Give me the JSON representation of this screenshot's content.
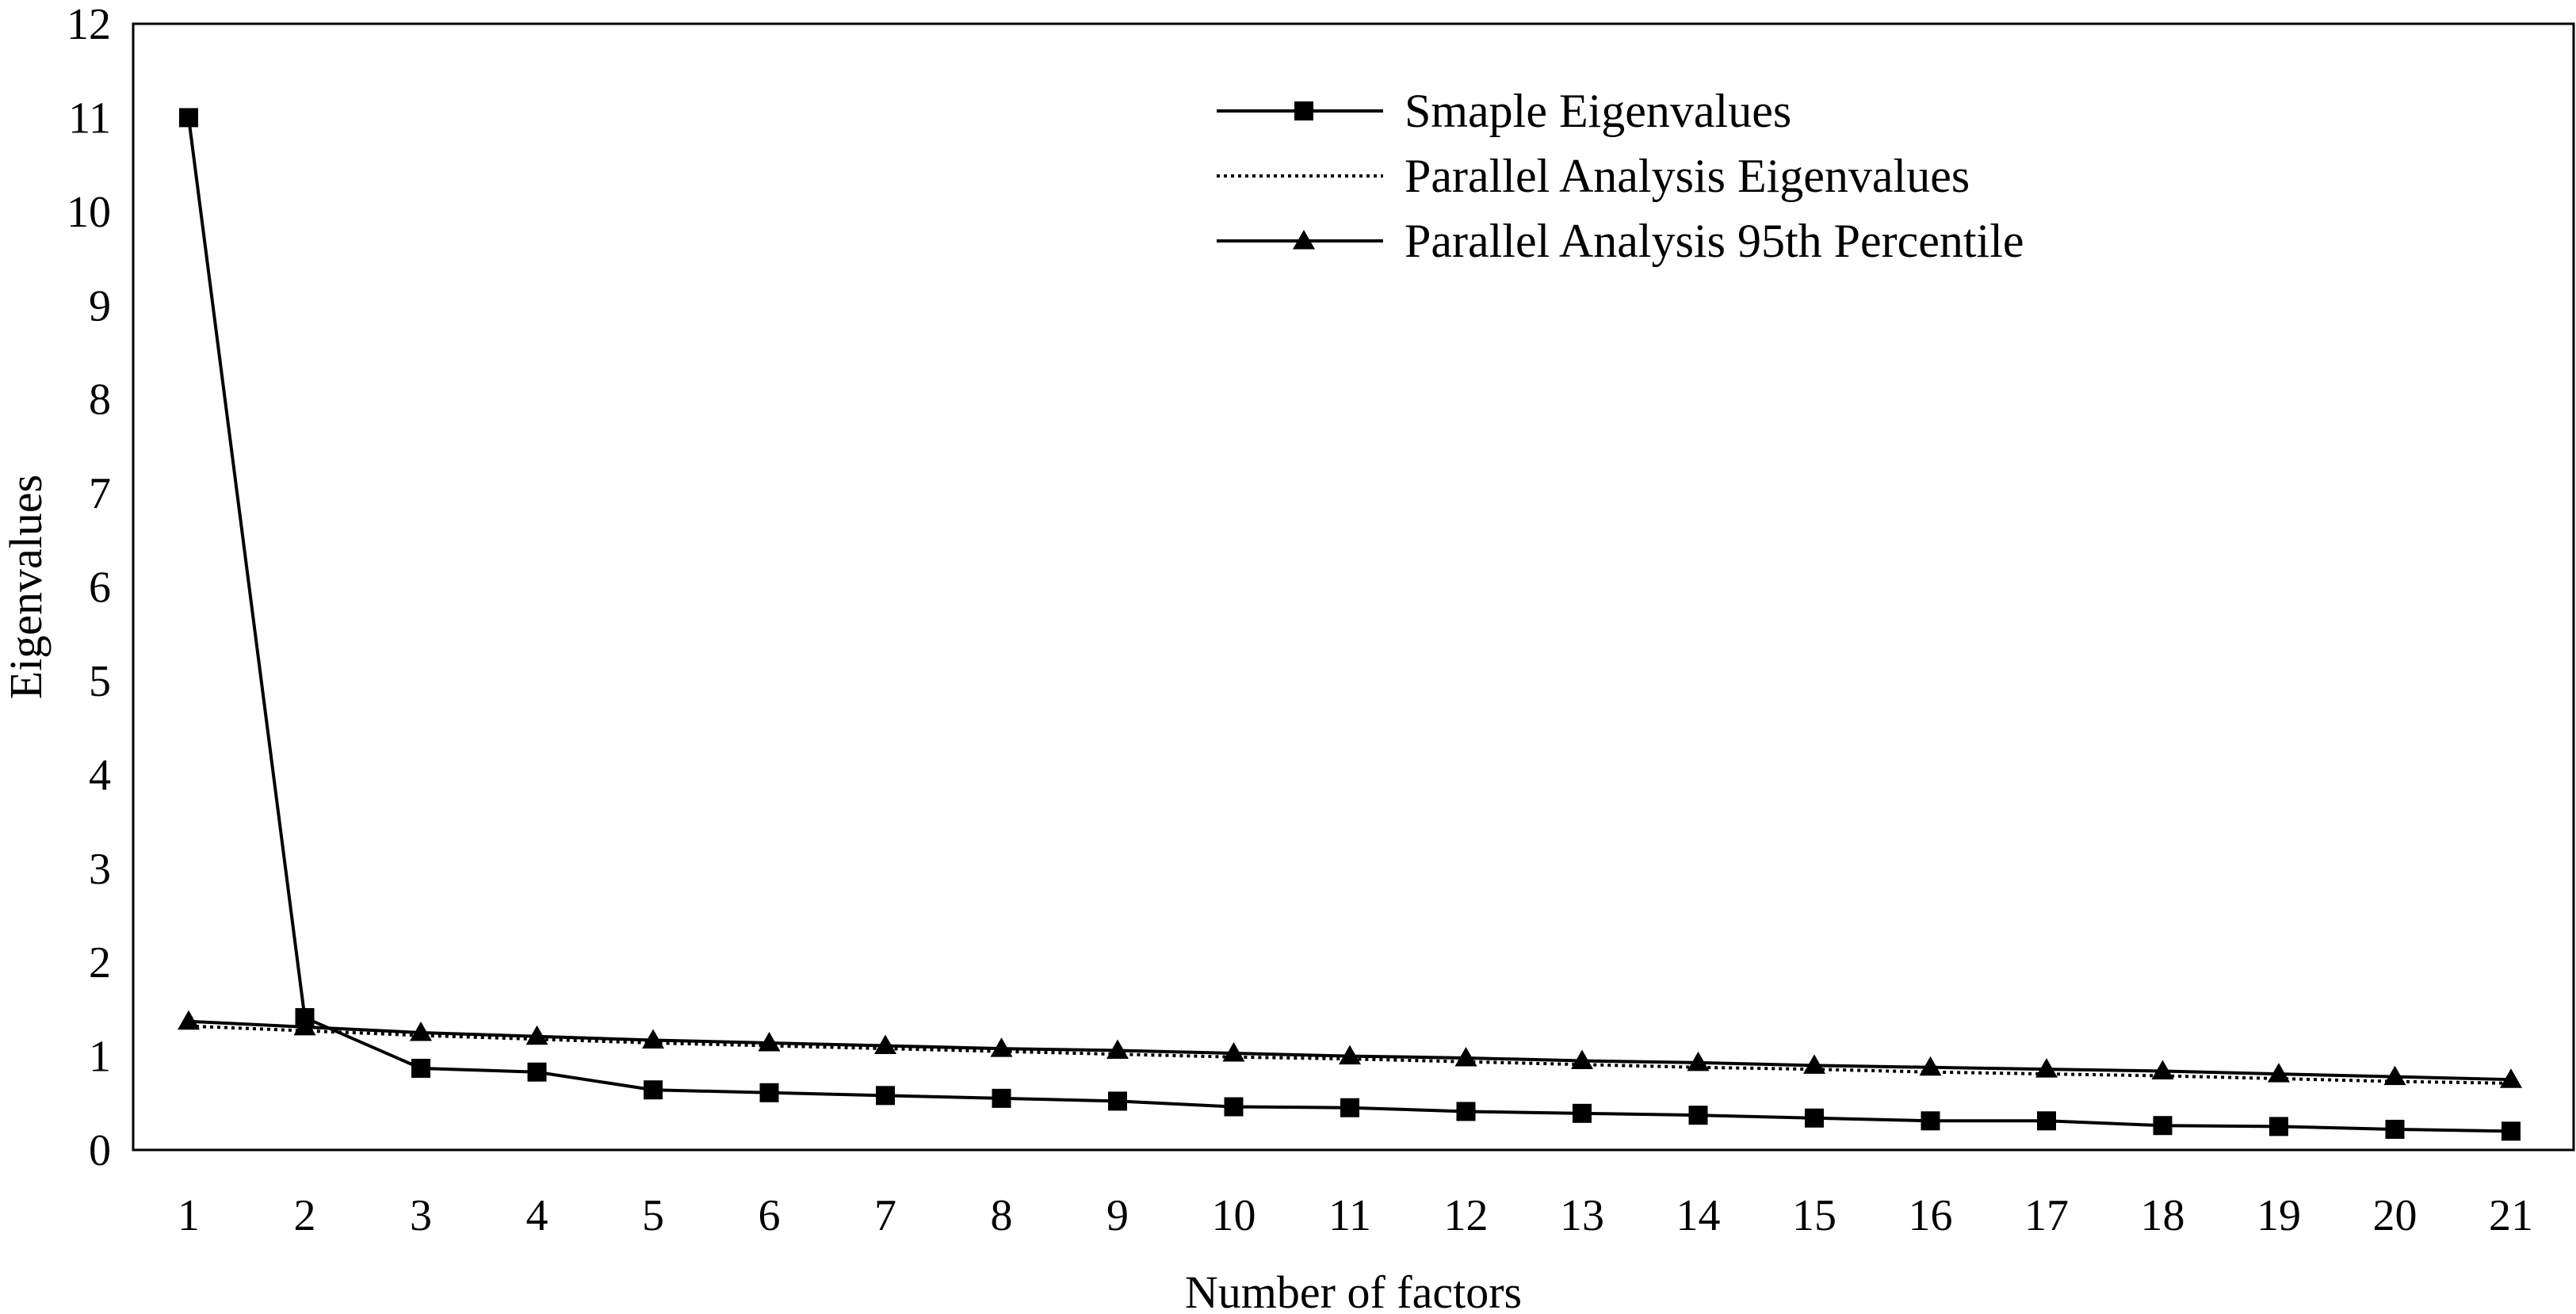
{
  "chart_data": {
    "type": "line",
    "title": "",
    "xlabel": "Number of factors",
    "ylabel": "Eigenvalues",
    "categories": [
      "1",
      "2",
      "3",
      "4",
      "5",
      "6",
      "7",
      "8",
      "9",
      "10",
      "11",
      "12",
      "13",
      "14",
      "15",
      "16",
      "17",
      "18",
      "19",
      "20",
      "21"
    ],
    "x": [
      1,
      2,
      3,
      4,
      5,
      6,
      7,
      8,
      9,
      10,
      11,
      12,
      13,
      14,
      15,
      16,
      17,
      18,
      19,
      20,
      21
    ],
    "ylim": [
      0,
      12
    ],
    "yticks": [
      0,
      1,
      2,
      3,
      4,
      5,
      6,
      7,
      8,
      9,
      10,
      11,
      12
    ],
    "grid": false,
    "legend_position": "top-right",
    "series": [
      {
        "name": "Smaple Eigenvalues",
        "marker": "square",
        "line_style": "solid",
        "color": "#000000",
        "values": [
          11.0,
          1.41,
          0.87,
          0.83,
          0.64,
          0.61,
          0.58,
          0.55,
          0.52,
          0.46,
          0.45,
          0.41,
          0.39,
          0.37,
          0.34,
          0.31,
          0.31,
          0.26,
          0.25,
          0.22,
          0.2
        ]
      },
      {
        "name": "Parallel Analysis Eigenvalues",
        "marker": "none",
        "line_style": "dotted",
        "color": "#000000",
        "values": [
          1.32,
          1.27,
          1.22,
          1.18,
          1.14,
          1.11,
          1.08,
          1.05,
          1.02,
          0.99,
          0.97,
          0.94,
          0.91,
          0.88,
          0.86,
          0.83,
          0.81,
          0.79,
          0.76,
          0.73,
          0.71
        ]
      },
      {
        "name": "Parallel Analysis 95th Percentile",
        "marker": "triangle",
        "line_style": "solid",
        "color": "#000000",
        "values": [
          1.37,
          1.31,
          1.25,
          1.21,
          1.17,
          1.14,
          1.11,
          1.08,
          1.06,
          1.03,
          1.0,
          0.98,
          0.95,
          0.93,
          0.9,
          0.88,
          0.86,
          0.84,
          0.81,
          0.78,
          0.75
        ]
      }
    ]
  }
}
